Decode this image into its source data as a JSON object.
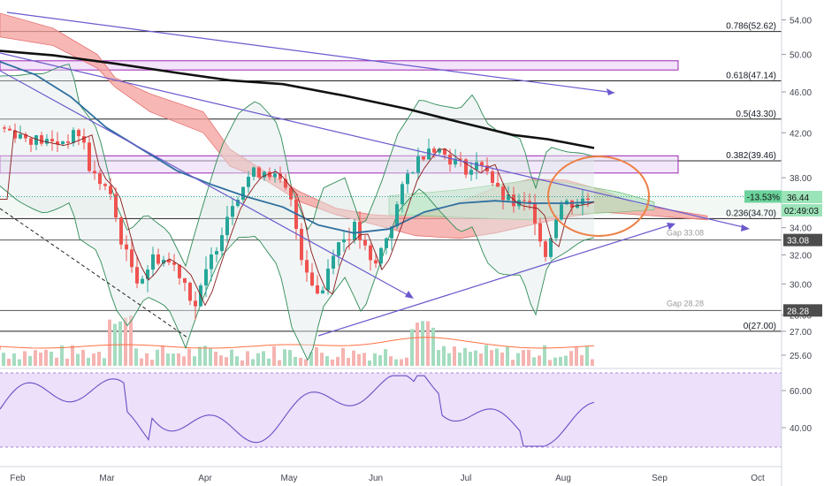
{
  "chart_data": {
    "type": "candlestick",
    "price_axis": {
      "scale": "log",
      "range": [
        25.0,
        56.0
      ],
      "ticks": [
        "54.00",
        "50.00",
        "46.00",
        "42.00",
        "38.00",
        "34.00",
        "32.00",
        "30.00",
        "28.00",
        "27.00",
        "25.60"
      ]
    },
    "time_axis": {
      "labels": [
        "Feb",
        "Mar",
        "Apr",
        "May",
        "Jun",
        "Jul",
        "Aug",
        "Sep",
        "Oct"
      ]
    },
    "fib_levels": [
      {
        "label": "0.786(52.62)",
        "price": 52.62
      },
      {
        "label": "0.618(47.14)",
        "price": 47.14
      },
      {
        "label": "0.5(43.30)",
        "price": 43.3
      },
      {
        "label": "0.382(39.46)",
        "price": 39.46
      },
      {
        "label": "0.236(34.70)",
        "price": 34.7
      },
      {
        "label": "0(27.00)",
        "price": 27.0
      }
    ],
    "gaps": [
      {
        "label": "Gap 33.08",
        "price": 33.08,
        "badge": "33.08"
      },
      {
        "label": "Gap 28.28",
        "price": 28.28,
        "badge": "28.28"
      }
    ],
    "last_price": {
      "change": "-13.53%",
      "price": "36.44",
      "countdown": "02:49:03",
      "value": 36.44
    },
    "rsi_panel": {
      "ticks": [
        "60.00",
        "40.00"
      ],
      "range": [
        25,
        75
      ]
    },
    "sma200_points": [
      [
        0,
        50.4
      ],
      [
        60,
        49.9
      ],
      [
        130,
        49.0
      ],
      [
        200,
        48.0
      ],
      [
        260,
        47.2
      ],
      [
        320,
        46.8
      ],
      [
        390,
        45.6
      ],
      [
        460,
        44.3
      ],
      [
        520,
        43.0
      ],
      [
        580,
        41.8
      ],
      [
        620,
        41.4
      ],
      [
        672,
        40.6
      ]
    ],
    "colors": {
      "up": "#26a69a",
      "down": "#ef5350",
      "projection": "#6a5acd",
      "circle": "#ee7f45"
    }
  }
}
